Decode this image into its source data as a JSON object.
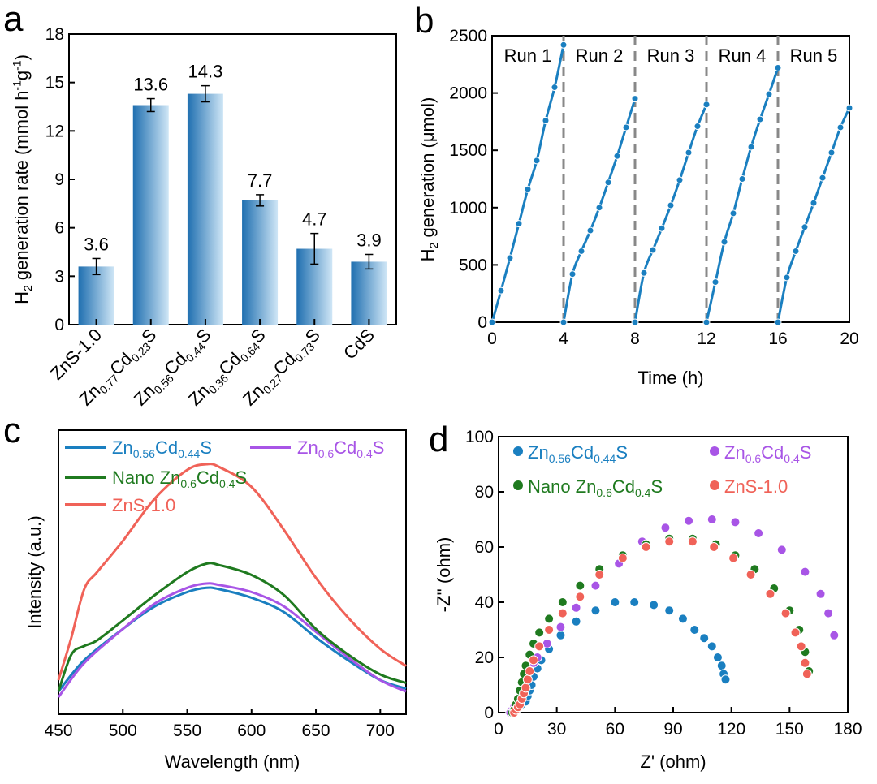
{
  "chart_data": [
    {
      "panel": "a",
      "type": "bar",
      "categories": [
        "ZnS-1.0",
        "Zn0.77Cd0.23S",
        "Zn0.56Cd0.44S",
        "Zn0.36Cd0.64S",
        "Zn0.27Cd0.73S",
        "CdS"
      ],
      "category_labels": [
        [
          [
            "ZnS-1.0",
            "n"
          ]
        ],
        [
          [
            "Zn",
            "n"
          ],
          [
            "0.77",
            "s"
          ],
          [
            "Cd",
            "n"
          ],
          [
            "0.23",
            "s"
          ],
          [
            "S",
            "n"
          ]
        ],
        [
          [
            "Zn",
            "n"
          ],
          [
            "0.56",
            "s"
          ],
          [
            "Cd",
            "n"
          ],
          [
            "0.44",
            "s"
          ],
          [
            "S",
            "n"
          ]
        ],
        [
          [
            "Zn",
            "n"
          ],
          [
            "0.36",
            "s"
          ],
          [
            "Cd",
            "n"
          ],
          [
            "0.64",
            "s"
          ],
          [
            "S",
            "n"
          ]
        ],
        [
          [
            "Zn",
            "n"
          ],
          [
            "0.27",
            "s"
          ],
          [
            "Cd",
            "n"
          ],
          [
            "0.73",
            "s"
          ],
          [
            "S",
            "n"
          ]
        ],
        [
          [
            "CdS",
            "n"
          ]
        ]
      ],
      "values": [
        3.6,
        13.6,
        14.3,
        7.7,
        4.7,
        3.9
      ],
      "errors": [
        0.5,
        0.4,
        0.5,
        0.35,
        0.95,
        0.45
      ],
      "data_labels": [
        "3.6",
        "13.6",
        "14.3",
        "7.7",
        "4.7",
        "3.9"
      ],
      "ylabel_parts": [
        [
          "H",
          "n"
        ],
        [
          "2",
          "s"
        ],
        [
          " generation rate (mmol h",
          "n"
        ],
        [
          "-1",
          "p"
        ],
        [
          "g",
          "n"
        ],
        [
          "-1",
          "p"
        ],
        [
          ")",
          "n"
        ]
      ],
      "ylim": [
        0,
        18
      ],
      "yticks": [
        0,
        3,
        6,
        9,
        12,
        15,
        18
      ],
      "colors": {
        "bar_dark": "#1f6fb0",
        "bar_light": "#cfe6f6"
      }
    },
    {
      "panel": "b",
      "type": "line",
      "xlabel": "Time (h)",
      "ylabel_parts": [
        [
          "H",
          "n"
        ],
        [
          "2",
          "s"
        ],
        [
          " generation (μmol)",
          "n"
        ]
      ],
      "xlim": [
        0,
        20
      ],
      "ylim": [
        0,
        2500
      ],
      "xticks": [
        0,
        4,
        8,
        12,
        16,
        20
      ],
      "yticks": [
        0,
        500,
        1000,
        1500,
        2000,
        2500
      ],
      "run_boundaries": [
        4,
        8,
        12,
        16
      ],
      "run_labels": [
        "Run 1",
        "Run 2",
        "Run 3",
        "Run 4",
        "Run 5"
      ],
      "color": "#1a7fc0",
      "runs": [
        {
          "x": [
            0,
            0.5,
            1,
            1.5,
            2,
            2.5,
            3,
            3.5,
            4
          ],
          "y": [
            0,
            275,
            560,
            860,
            1160,
            1410,
            1760,
            2050,
            2420
          ]
        },
        {
          "x": [
            4,
            4.5,
            5,
            5.5,
            6,
            6.5,
            7,
            7.5,
            8
          ],
          "y": [
            0,
            420,
            620,
            800,
            1000,
            1220,
            1450,
            1700,
            1950
          ]
        },
        {
          "x": [
            8,
            8.5,
            9,
            9.5,
            10,
            10.5,
            11,
            11.5,
            12
          ],
          "y": [
            0,
            430,
            630,
            820,
            1020,
            1240,
            1480,
            1710,
            1900
          ]
        },
        {
          "x": [
            12,
            12.5,
            13,
            13.5,
            14,
            14.5,
            15,
            15.5,
            16
          ],
          "y": [
            0,
            350,
            700,
            950,
            1250,
            1530,
            1770,
            1990,
            2220
          ]
        },
        {
          "x": [
            16,
            16.5,
            17,
            17.5,
            18,
            18.5,
            19,
            19.5,
            20
          ],
          "y": [
            0,
            390,
            620,
            830,
            1040,
            1260,
            1480,
            1700,
            1870
          ]
        }
      ]
    },
    {
      "panel": "c",
      "type": "line",
      "xlabel": "Wavelength (nm)",
      "ylabel": "Intensity (a.u.)",
      "xlim": [
        450,
        720
      ],
      "ylim": [
        0,
        1
      ],
      "xticks": [
        450,
        500,
        550,
        600,
        650,
        700
      ],
      "series": [
        {
          "name_parts": [
            [
              "Zn",
              "n"
            ],
            [
              "0.56",
              "s"
            ],
            [
              "Cd",
              "n"
            ],
            [
              "0.44",
              "s"
            ],
            [
              "S",
              "n"
            ]
          ],
          "color": "#1a7fc0",
          "x": [
            450,
            470,
            500,
            525,
            550,
            565,
            575,
            600,
            625,
            650,
            675,
            700,
            720
          ],
          "y": [
            0.08,
            0.19,
            0.3,
            0.38,
            0.43,
            0.445,
            0.44,
            0.41,
            0.36,
            0.27,
            0.19,
            0.12,
            0.09
          ]
        },
        {
          "name_parts": [
            [
              "Zn",
              "n"
            ],
            [
              "0.6",
              "s"
            ],
            [
              "Cd",
              "n"
            ],
            [
              "0.4",
              "s"
            ],
            [
              "S",
              "n"
            ]
          ],
          "color": "#a855e6",
          "x": [
            450,
            470,
            500,
            525,
            550,
            565,
            575,
            600,
            625,
            650,
            675,
            700,
            720
          ],
          "y": [
            0.06,
            0.18,
            0.3,
            0.39,
            0.445,
            0.46,
            0.455,
            0.43,
            0.38,
            0.29,
            0.2,
            0.12,
            0.08
          ]
        },
        {
          "name_parts": [
            [
              "Nano Zn",
              "n"
            ],
            [
              "0.6",
              "s"
            ],
            [
              "Cd",
              "n"
            ],
            [
              "0.4",
              "s"
            ],
            [
              "S",
              "n"
            ]
          ],
          "color": "#1f7a1f",
          "x": [
            450,
            460,
            470,
            480,
            500,
            525,
            550,
            565,
            575,
            600,
            625,
            650,
            675,
            700,
            720
          ],
          "y": [
            0.08,
            0.21,
            0.24,
            0.26,
            0.33,
            0.42,
            0.5,
            0.53,
            0.525,
            0.49,
            0.42,
            0.3,
            0.21,
            0.14,
            0.11
          ]
        },
        {
          "name_parts": [
            [
              "ZnS-1.0",
              "n"
            ]
          ],
          "color": "#f06258",
          "x": [
            450,
            460,
            470,
            480,
            500,
            525,
            550,
            565,
            575,
            600,
            625,
            650,
            675,
            700,
            720
          ],
          "y": [
            0.12,
            0.27,
            0.44,
            0.5,
            0.61,
            0.76,
            0.86,
            0.88,
            0.87,
            0.8,
            0.65,
            0.48,
            0.34,
            0.23,
            0.17
          ]
        }
      ]
    },
    {
      "panel": "d",
      "type": "scatter",
      "xlabel": "Z' (ohm)",
      "ylabel": "-Z'' (ohm)",
      "xlim": [
        0,
        180
      ],
      "ylim": [
        0,
        100
      ],
      "xticks": [
        0,
        30,
        60,
        90,
        120,
        150,
        180
      ],
      "yticks": [
        0,
        20,
        40,
        60,
        80,
        100
      ],
      "series": [
        {
          "name_parts": [
            [
              "Zn",
              "n"
            ],
            [
              "0.56",
              "s"
            ],
            [
              "Cd",
              "n"
            ],
            [
              "0.44",
              "s"
            ],
            [
              "S",
              "n"
            ]
          ],
          "color": "#1a7fc0",
          "x": [
            7,
            8,
            10,
            12,
            14,
            15,
            16,
            17,
            18,
            20,
            22,
            26,
            32,
            40,
            50,
            60,
            70,
            80,
            88,
            95,
            101,
            106,
            110,
            113,
            115,
            116,
            117
          ],
          "y": [
            0,
            1,
            2,
            3,
            4,
            6,
            8,
            10,
            13,
            16,
            19,
            23,
            28,
            33,
            37,
            40,
            40,
            39,
            37,
            34,
            30,
            27,
            24,
            20,
            17,
            14,
            12
          ]
        },
        {
          "name_parts": [
            [
              "Zn",
              "n"
            ],
            [
              "0.6",
              "s"
            ],
            [
              "Cd",
              "n"
            ],
            [
              "0.4",
              "s"
            ],
            [
              "S",
              "n"
            ]
          ],
          "color": "#a855e6",
          "x": [
            6,
            7,
            8,
            9,
            10,
            11,
            12,
            13,
            14,
            16,
            18,
            20,
            25,
            32,
            40,
            50,
            62,
            74,
            86,
            98,
            110,
            122,
            134,
            146,
            158,
            166,
            170,
            173
          ],
          "y": [
            0,
            1,
            2,
            3,
            5,
            7,
            9,
            11,
            13,
            15,
            18,
            20,
            25,
            31,
            38,
            46,
            54,
            62,
            67,
            69.5,
            70,
            69,
            65,
            59,
            51,
            43,
            36,
            28
          ]
        },
        {
          "name_parts": [
            [
              "Nano Zn",
              "n"
            ],
            [
              "0.6",
              "s"
            ],
            [
              "Cd",
              "n"
            ],
            [
              "0.4",
              "s"
            ],
            [
              "S",
              "n"
            ]
          ],
          "color": "#1f7a1f",
          "x": [
            7,
            8,
            9,
            10,
            11,
            12,
            13,
            14,
            16,
            18,
            21,
            26,
            33,
            42,
            52,
            64,
            76,
            88,
            100,
            112,
            122,
            132,
            142,
            150,
            155,
            158,
            160
          ],
          "y": [
            0,
            1,
            3,
            5,
            8,
            11,
            14,
            17,
            21,
            25,
            29,
            34,
            40,
            46,
            52,
            57,
            61,
            63,
            63,
            61,
            57,
            52,
            45,
            37,
            30,
            22,
            15
          ]
        },
        {
          "name_parts": [
            [
              "ZnS-1.0",
              "n"
            ]
          ],
          "color": "#f06258",
          "x": [
            8,
            9,
            10,
            11,
            12,
            13,
            14,
            15,
            16,
            18,
            21,
            26,
            33,
            42,
            52,
            64,
            76,
            88,
            100,
            111,
            121,
            130,
            140,
            148,
            153,
            156,
            158,
            159
          ],
          "y": [
            0,
            1,
            2,
            3,
            5,
            7,
            9,
            12,
            15,
            19,
            24,
            30,
            36,
            42,
            50,
            56,
            60,
            62,
            62,
            60,
            56,
            50,
            43,
            36,
            29,
            24,
            18,
            14
          ]
        }
      ]
    }
  ]
}
